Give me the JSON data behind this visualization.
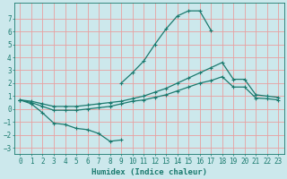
{
  "xlabel": "Humidex (Indice chaleur)",
  "bg_color": "#cce8ec",
  "grid_color": "#e8a0a0",
  "line_color": "#1a7a6e",
  "xlim": [
    -0.5,
    23.5
  ],
  "ylim": [
    -3.5,
    8.2
  ],
  "yticks": [
    -3,
    -2,
    -1,
    0,
    1,
    2,
    3,
    4,
    5,
    6,
    7
  ],
  "xticks": [
    0,
    1,
    2,
    3,
    4,
    5,
    6,
    7,
    8,
    9,
    10,
    11,
    12,
    13,
    14,
    15,
    16,
    17,
    18,
    19,
    20,
    21,
    22,
    23
  ],
  "line1_x": [
    0,
    1,
    2,
    3,
    4,
    5,
    6,
    7,
    8,
    9
  ],
  "line1_y": [
    0.7,
    0.4,
    -0.3,
    -1.1,
    -1.2,
    -1.5,
    -1.6,
    -1.9,
    -2.5,
    -2.4
  ],
  "line2_x": [
    9,
    10,
    11,
    12,
    13,
    14,
    15,
    16,
    17
  ],
  "line2_y": [
    2.0,
    2.8,
    3.7,
    5.0,
    6.2,
    7.2,
    7.6,
    7.6,
    6.1
  ],
  "line3_x": [
    0,
    1,
    2,
    3,
    4,
    5,
    6,
    7,
    8,
    9,
    10,
    11,
    12,
    13,
    14,
    15,
    16,
    17,
    18,
    19,
    20,
    21,
    22,
    23
  ],
  "line3_y": [
    0.7,
    0.6,
    0.4,
    0.2,
    0.2,
    0.2,
    0.3,
    0.4,
    0.5,
    0.6,
    0.8,
    1.0,
    1.3,
    1.6,
    2.0,
    2.4,
    2.8,
    3.2,
    3.6,
    2.3,
    2.3,
    1.1,
    1.0,
    0.9
  ],
  "line4_x": [
    0,
    1,
    2,
    3,
    4,
    5,
    6,
    7,
    8,
    9,
    10,
    11,
    12,
    13,
    14,
    15,
    16,
    17,
    18,
    19,
    20,
    21,
    22,
    23
  ],
  "line4_y": [
    0.7,
    0.5,
    0.2,
    -0.1,
    -0.1,
    -0.1,
    0.0,
    0.1,
    0.2,
    0.4,
    0.6,
    0.7,
    0.9,
    1.1,
    1.4,
    1.7,
    2.0,
    2.2,
    2.5,
    1.7,
    1.7,
    0.85,
    0.8,
    0.7
  ]
}
